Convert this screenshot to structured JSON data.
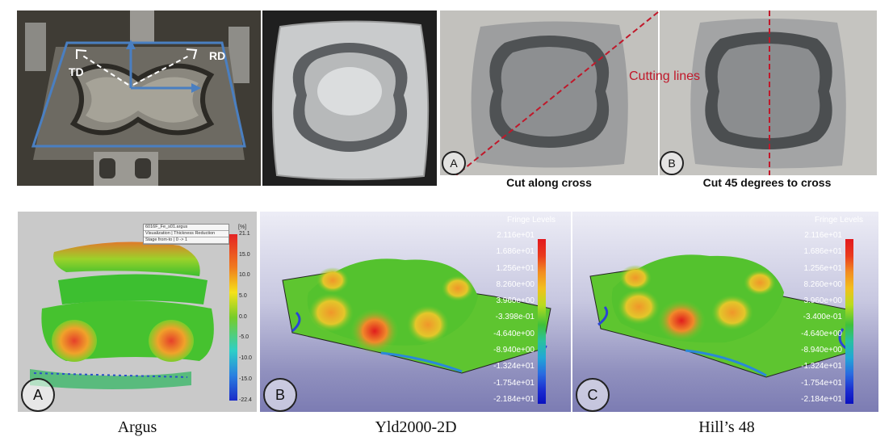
{
  "top_left_photo": {
    "annotations": {
      "td": "TD",
      "rd": "RD"
    }
  },
  "top_right_photo": {
    "cutting_label": "Cutting lines",
    "panel_a": {
      "letter": "A",
      "caption": "Cut along cross"
    },
    "panel_b": {
      "letter": "B",
      "caption": "Cut 45 degrees to cross"
    }
  },
  "bottom_panels": {
    "argus": {
      "letter": "A",
      "caption": "Argus",
      "legend_box": [
        "6016F_Fe_s01.argus",
        "Visualization | Thickness Reduction",
        "Stage from-to | 0 -> 1"
      ],
      "unit": "[%]",
      "scale": [
        "21.1",
        "15.0",
        "10.0",
        "5.0",
        "0.0",
        "-5.0",
        "-10.0",
        "-15.0",
        "-22.4"
      ]
    },
    "yld2000": {
      "letter": "B",
      "caption": "Yld2000-2D",
      "fringe_title": "Fringe Levels",
      "levels": [
        "2.116e+01",
        "1.686e+01",
        "1.256e+01",
        "8.260e+00",
        "3.960e+00",
        "-3.398e-01",
        "-4.640e+00",
        "-8.940e+00",
        "-1.324e+01",
        "-1.754e+01",
        "-2.184e+01"
      ]
    },
    "hill48": {
      "letter": "C",
      "caption": "Hill’s 48",
      "fringe_title": "Fringe Levels",
      "levels": [
        "2.116e+01",
        "1.686e+01",
        "1.256e+01",
        "8.260e+00",
        "3.960e+00",
        "-3.400e-01",
        "-4.640e+00",
        "-8.940e+00",
        "-1.324e+01",
        "-1.754e+01",
        "-2.184e+01"
      ]
    }
  },
  "colors": {
    "outline_blue": "#4a7fc1",
    "cut_red": "#c0182a"
  }
}
